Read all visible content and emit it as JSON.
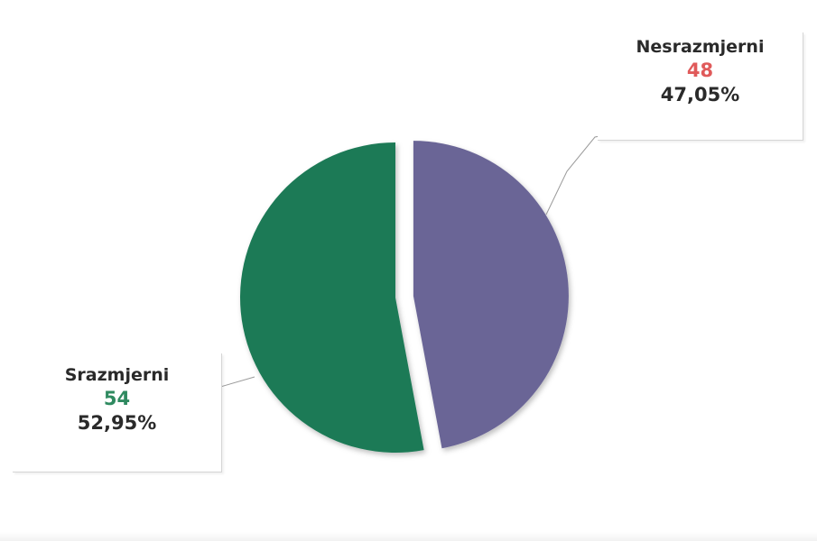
{
  "colors": {
    "srazmjerni": "#1f7a57",
    "nesrazmjerni": "#6a6596",
    "srazmjerni_value": "#2f8a60",
    "nesrazmjerni_value": "#e05a5a"
  },
  "chart_data": {
    "type": "pie",
    "title": "",
    "legend": "none",
    "slices": [
      {
        "name": "Srazmjerni",
        "value": 54,
        "percent_label": "52,95%"
      },
      {
        "name": "Nesrazmjerni",
        "value": 48,
        "percent_label": "47,05%"
      }
    ]
  }
}
